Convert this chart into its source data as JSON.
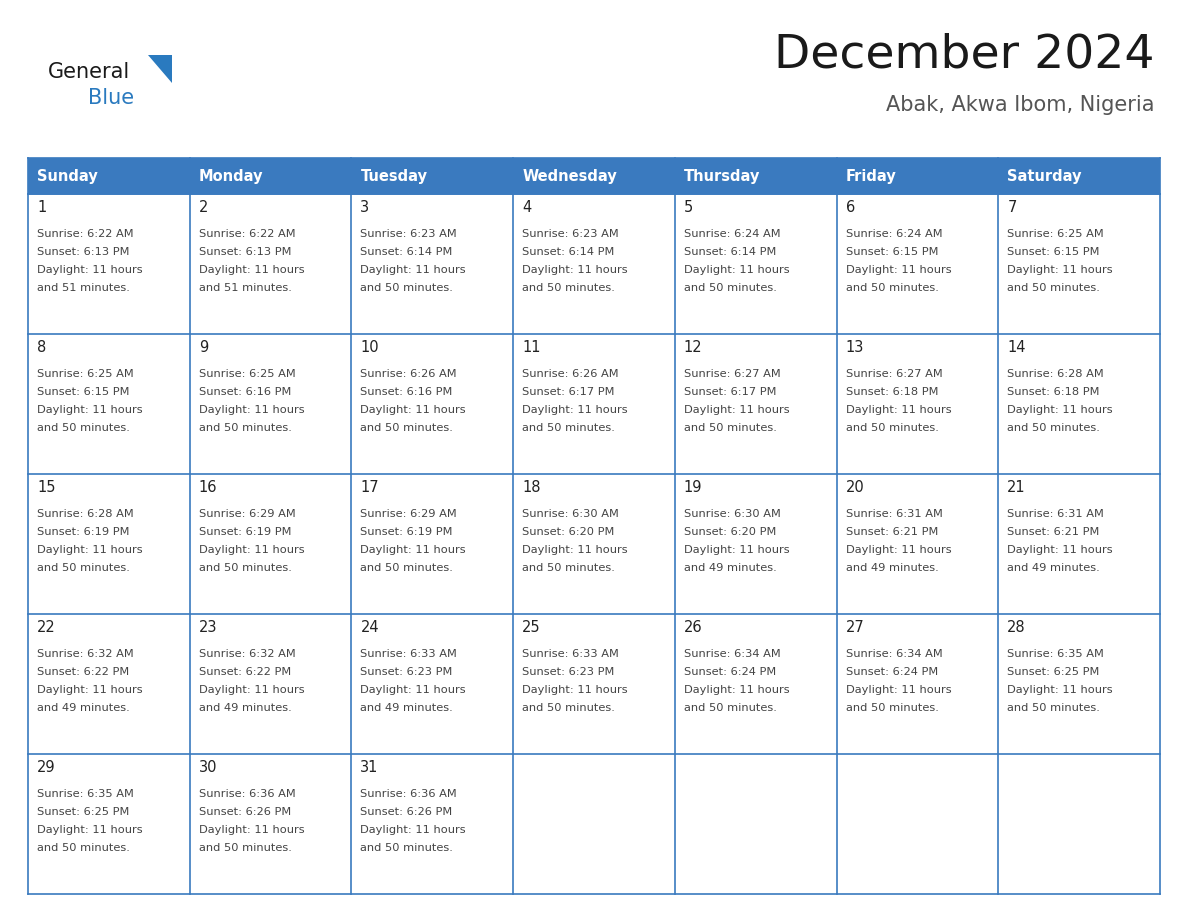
{
  "title": "December 2024",
  "subtitle": "Abak, Akwa Ibom, Nigeria",
  "days_of_week": [
    "Sunday",
    "Monday",
    "Tuesday",
    "Wednesday",
    "Thursday",
    "Friday",
    "Saturday"
  ],
  "header_bg": "#3a7abf",
  "header_text": "#ffffff",
  "border_color": "#3a7abf",
  "text_color": "#444444",
  "day_num_color": "#222222",
  "title_color": "#1a1a1a",
  "subtitle_color": "#555555",
  "general_text_color": "#1a1a1a",
  "blue_logo_color": "#2a7abf",
  "cell_bg": "#ffffff",
  "empty_bg": "#f5f5f5",
  "calendar": [
    [
      {
        "day": 1,
        "sunrise": "6:22 AM",
        "sunset": "6:13 PM",
        "daylight": "11 hours and 51 minutes."
      },
      {
        "day": 2,
        "sunrise": "6:22 AM",
        "sunset": "6:13 PM",
        "daylight": "11 hours and 51 minutes."
      },
      {
        "day": 3,
        "sunrise": "6:23 AM",
        "sunset": "6:14 PM",
        "daylight": "11 hours and 50 minutes."
      },
      {
        "day": 4,
        "sunrise": "6:23 AM",
        "sunset": "6:14 PM",
        "daylight": "11 hours and 50 minutes."
      },
      {
        "day": 5,
        "sunrise": "6:24 AM",
        "sunset": "6:14 PM",
        "daylight": "11 hours and 50 minutes."
      },
      {
        "day": 6,
        "sunrise": "6:24 AM",
        "sunset": "6:15 PM",
        "daylight": "11 hours and 50 minutes."
      },
      {
        "day": 7,
        "sunrise": "6:25 AM",
        "sunset": "6:15 PM",
        "daylight": "11 hours and 50 minutes."
      }
    ],
    [
      {
        "day": 8,
        "sunrise": "6:25 AM",
        "sunset": "6:15 PM",
        "daylight": "11 hours and 50 minutes."
      },
      {
        "day": 9,
        "sunrise": "6:25 AM",
        "sunset": "6:16 PM",
        "daylight": "11 hours and 50 minutes."
      },
      {
        "day": 10,
        "sunrise": "6:26 AM",
        "sunset": "6:16 PM",
        "daylight": "11 hours and 50 minutes."
      },
      {
        "day": 11,
        "sunrise": "6:26 AM",
        "sunset": "6:17 PM",
        "daylight": "11 hours and 50 minutes."
      },
      {
        "day": 12,
        "sunrise": "6:27 AM",
        "sunset": "6:17 PM",
        "daylight": "11 hours and 50 minutes."
      },
      {
        "day": 13,
        "sunrise": "6:27 AM",
        "sunset": "6:18 PM",
        "daylight": "11 hours and 50 minutes."
      },
      {
        "day": 14,
        "sunrise": "6:28 AM",
        "sunset": "6:18 PM",
        "daylight": "11 hours and 50 minutes."
      }
    ],
    [
      {
        "day": 15,
        "sunrise": "6:28 AM",
        "sunset": "6:19 PM",
        "daylight": "11 hours and 50 minutes."
      },
      {
        "day": 16,
        "sunrise": "6:29 AM",
        "sunset": "6:19 PM",
        "daylight": "11 hours and 50 minutes."
      },
      {
        "day": 17,
        "sunrise": "6:29 AM",
        "sunset": "6:19 PM",
        "daylight": "11 hours and 50 minutes."
      },
      {
        "day": 18,
        "sunrise": "6:30 AM",
        "sunset": "6:20 PM",
        "daylight": "11 hours and 50 minutes."
      },
      {
        "day": 19,
        "sunrise": "6:30 AM",
        "sunset": "6:20 PM",
        "daylight": "11 hours and 49 minutes."
      },
      {
        "day": 20,
        "sunrise": "6:31 AM",
        "sunset": "6:21 PM",
        "daylight": "11 hours and 49 minutes."
      },
      {
        "day": 21,
        "sunrise": "6:31 AM",
        "sunset": "6:21 PM",
        "daylight": "11 hours and 49 minutes."
      }
    ],
    [
      {
        "day": 22,
        "sunrise": "6:32 AM",
        "sunset": "6:22 PM",
        "daylight": "11 hours and 49 minutes."
      },
      {
        "day": 23,
        "sunrise": "6:32 AM",
        "sunset": "6:22 PM",
        "daylight": "11 hours and 49 minutes."
      },
      {
        "day": 24,
        "sunrise": "6:33 AM",
        "sunset": "6:23 PM",
        "daylight": "11 hours and 49 minutes."
      },
      {
        "day": 25,
        "sunrise": "6:33 AM",
        "sunset": "6:23 PM",
        "daylight": "11 hours and 50 minutes."
      },
      {
        "day": 26,
        "sunrise": "6:34 AM",
        "sunset": "6:24 PM",
        "daylight": "11 hours and 50 minutes."
      },
      {
        "day": 27,
        "sunrise": "6:34 AM",
        "sunset": "6:24 PM",
        "daylight": "11 hours and 50 minutes."
      },
      {
        "day": 28,
        "sunrise": "6:35 AM",
        "sunset": "6:25 PM",
        "daylight": "11 hours and 50 minutes."
      }
    ],
    [
      {
        "day": 29,
        "sunrise": "6:35 AM",
        "sunset": "6:25 PM",
        "daylight": "11 hours and 50 minutes."
      },
      {
        "day": 30,
        "sunrise": "6:36 AM",
        "sunset": "6:26 PM",
        "daylight": "11 hours and 50 minutes."
      },
      {
        "day": 31,
        "sunrise": "6:36 AM",
        "sunset": "6:26 PM",
        "daylight": "11 hours and 50 minutes."
      },
      null,
      null,
      null,
      null
    ]
  ]
}
